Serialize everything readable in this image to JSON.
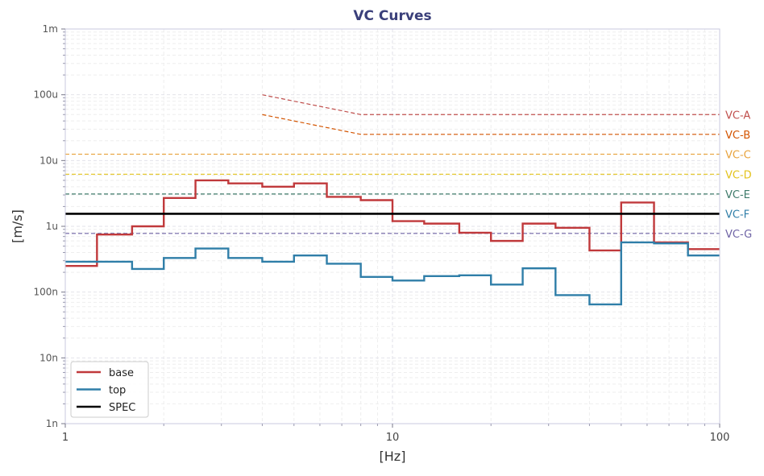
{
  "chart_data": {
    "type": "line",
    "title": "VC Curves",
    "xlabel": "[Hz]",
    "ylabel": "[m/s]",
    "xscale": "log",
    "yscale": "log",
    "xlim": [
      1,
      100
    ],
    "ylim": [
      1e-09,
      0.001
    ],
    "grid": true,
    "legend_position": "bottom-left",
    "x_ticks": [
      {
        "value": 1,
        "label": "1"
      },
      {
        "value": 10,
        "label": "10"
      },
      {
        "value": 100,
        "label": "100"
      }
    ],
    "y_ticks": [
      {
        "value": 0.001,
        "label": "1m"
      },
      {
        "value": 0.0001,
        "label": "100u"
      },
      {
        "value": 1e-05,
        "label": "10u"
      },
      {
        "value": 1e-06,
        "label": "1u"
      },
      {
        "value": 1e-07,
        "label": "100n"
      },
      {
        "value": 1e-08,
        "label": "10n"
      },
      {
        "value": 1e-09,
        "label": "1n"
      }
    ],
    "series": [
      {
        "name": "base",
        "color": "#c0393b",
        "style": "step",
        "edges": [
          1,
          1.25,
          1.6,
          2,
          2.5,
          3.15,
          4,
          5,
          6.3,
          8,
          10,
          12.5,
          16,
          20,
          25,
          31.5,
          40,
          50,
          63,
          80,
          100
        ],
        "values": [
          2.5e-07,
          7.5e-07,
          1e-06,
          2.7e-06,
          5e-06,
          4.5e-06,
          4e-06,
          4.5e-06,
          2.8e-06,
          2.5e-06,
          1.2e-06,
          1.1e-06,
          8e-07,
          6e-07,
          1.1e-06,
          9.5e-07,
          4.3e-07,
          2.3e-06,
          5.7e-07,
          4.5e-07
        ]
      },
      {
        "name": "top",
        "color": "#2f7ea8",
        "style": "step",
        "edges": [
          1,
          1.25,
          1.6,
          2,
          2.5,
          3.15,
          4,
          5,
          6.3,
          8,
          10,
          12.5,
          16,
          20,
          25,
          31.5,
          40,
          50,
          63,
          80,
          100
        ],
        "values": [
          2.9e-07,
          2.9e-07,
          2.25e-07,
          3.3e-07,
          4.6e-07,
          3.3e-07,
          2.9e-07,
          3.6e-07,
          2.7e-07,
          1.7e-07,
          1.5e-07,
          1.75e-07,
          1.8e-07,
          1.3e-07,
          2.3e-07,
          9e-08,
          6.5e-08,
          5.7e-07,
          5.5e-07,
          3.6e-07
        ]
      },
      {
        "name": "SPEC",
        "color": "#000000",
        "style": "hline",
        "value": 1.55e-06
      }
    ],
    "reference_lines": [
      {
        "label": "VC-A",
        "color": "#c0504d",
        "segments": [
          [
            4,
            0.0001
          ],
          [
            8,
            5e-05
          ],
          [
            100,
            5e-05
          ]
        ]
      },
      {
        "label": "VC-B",
        "color": "#d35400",
        "segments": [
          [
            4,
            5e-05
          ],
          [
            8,
            2.5e-05
          ],
          [
            100,
            2.5e-05
          ]
        ]
      },
      {
        "label": "VC-C",
        "color": "#e8a33d",
        "value": 1.25e-05
      },
      {
        "label": "VC-D",
        "color": "#e3c21b",
        "value": 6.2e-06
      },
      {
        "label": "VC-E",
        "color": "#3e7a6a",
        "value": 3.1e-06
      },
      {
        "label": "VC-F",
        "color": "#2f7ea8",
        "value": 1.55e-06
      },
      {
        "label": "VC-G",
        "color": "#6e63a5",
        "value": 7.8e-07
      }
    ]
  }
}
